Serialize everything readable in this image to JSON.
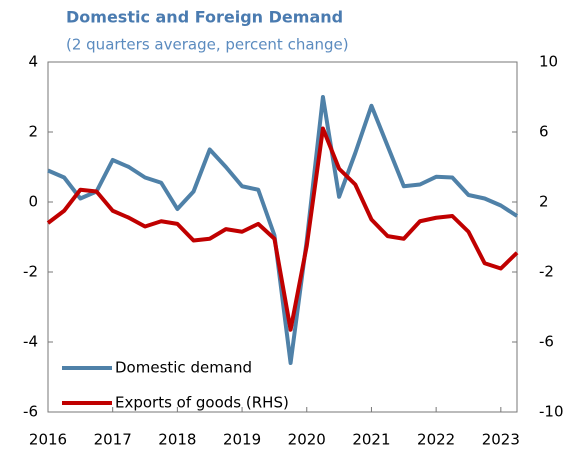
{
  "chart_data": {
    "type": "line",
    "title": "Domestic and Foreign Demand",
    "subtitle": "(2 quarters average, percent change)",
    "categories": [
      "2016",
      null,
      null,
      null,
      "2017",
      null,
      null,
      null,
      "2018",
      null,
      null,
      null,
      "2019",
      null,
      null,
      null,
      "2020",
      null,
      null,
      null,
      "2021",
      null,
      null,
      null,
      "2022",
      null,
      null,
      null,
      "2023",
      null
    ],
    "series": [
      {
        "name": "Domestic demand",
        "color": "#4f81a8",
        "values": [
          0.9,
          0.7,
          0.1,
          0.3,
          1.2,
          1.0,
          0.7,
          0.55,
          -0.2,
          0.3,
          1.5,
          1.0,
          0.45,
          0.35,
          -0.95,
          -4.6,
          -1.1,
          3.0,
          0.15,
          1.4,
          2.75,
          1.6,
          0.45,
          0.5,
          0.72,
          0.7,
          0.2,
          0.1,
          -0.1,
          -0.4
        ]
      },
      {
        "name": "Exports of goods (RHS)",
        "color": "#c00000",
        "axis": "y2",
        "values": [
          0.8,
          1.5,
          2.7,
          2.6,
          1.5,
          1.1,
          0.6,
          0.9,
          0.75,
          -0.2,
          -0.1,
          0.45,
          0.3,
          0.75,
          -0.1,
          -5.3,
          -0.5,
          6.2,
          3.9,
          3.0,
          1.0,
          0.05,
          -0.1,
          0.9,
          1.1,
          1.2,
          0.3,
          -1.5,
          -1.8,
          -0.9
        ]
      }
    ],
    "ylim": [
      -6,
      4
    ],
    "yticks": [
      -6,
      -4,
      -2,
      0,
      2,
      4
    ],
    "y2lim": [
      -10,
      10
    ],
    "y2ticks": [
      -10,
      -6,
      -2,
      2,
      6,
      10
    ],
    "legend": "lower left"
  }
}
